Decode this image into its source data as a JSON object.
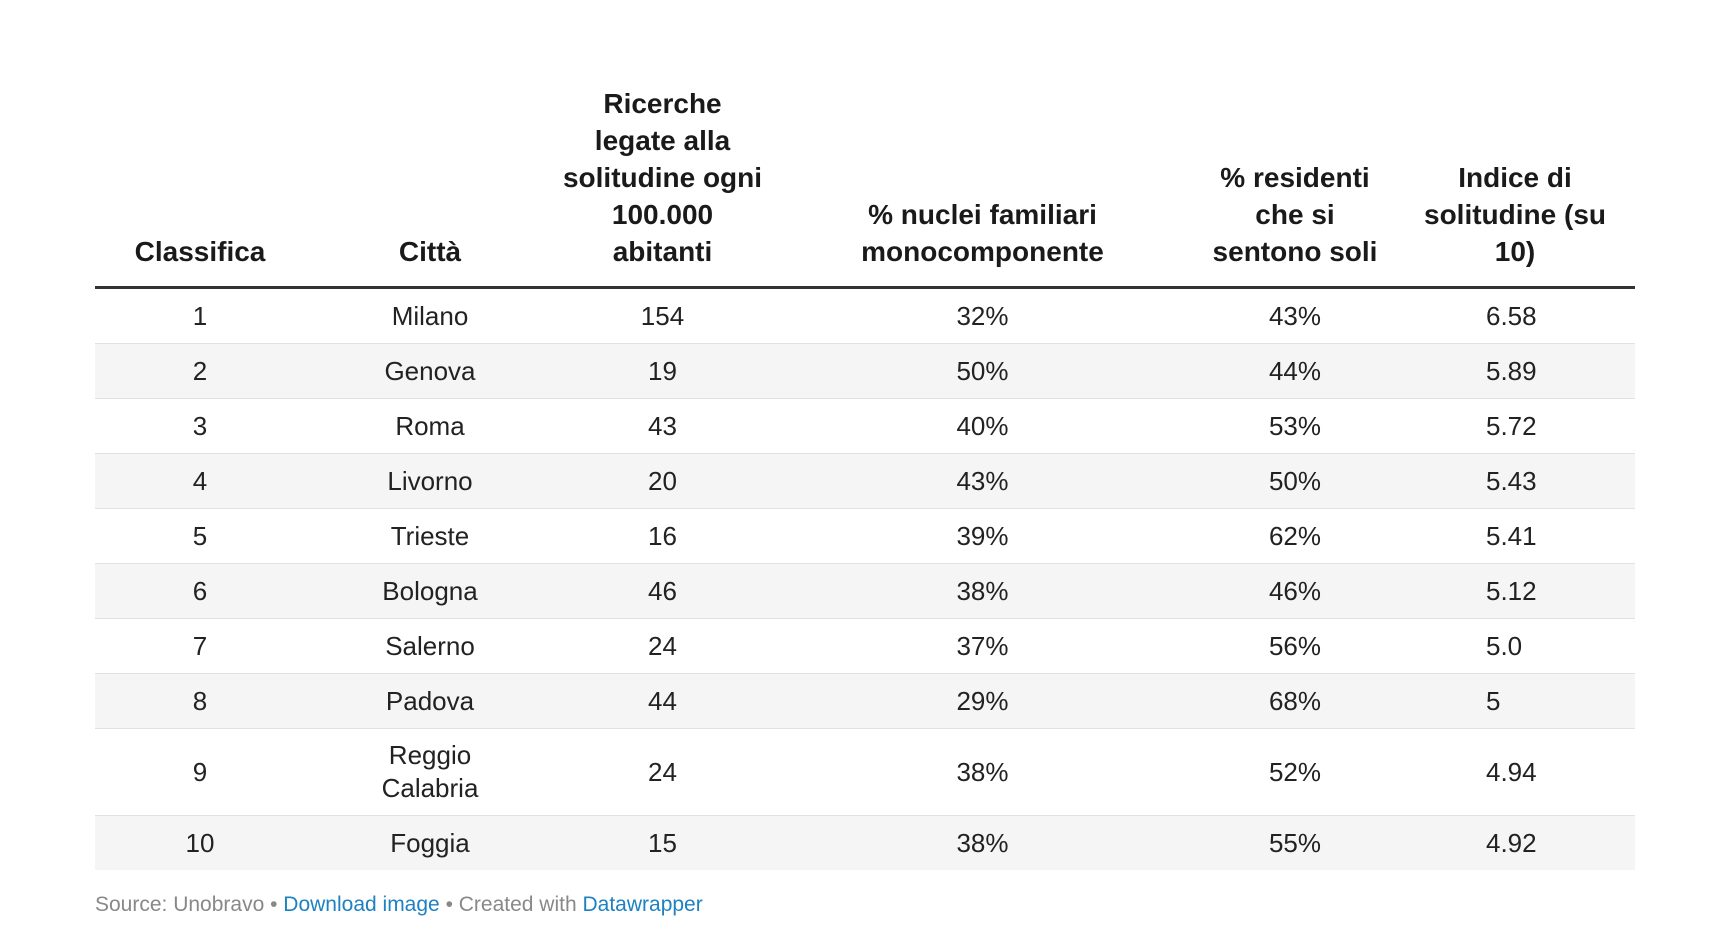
{
  "chart_data": {
    "type": "table",
    "columns": [
      "Classifica",
      "Città",
      "Ricerche legate alla solitudine ogni 100.000 abitanti",
      "% nuclei familiari monocomponente",
      "% residenti che si sentono soli",
      "Indice di solitudine (su 10)"
    ],
    "rows": [
      [
        "1",
        "Milano",
        "154",
        "32%",
        "43%",
        "6.58"
      ],
      [
        "2",
        "Genova",
        "19",
        "50%",
        "44%",
        "5.89"
      ],
      [
        "3",
        "Roma",
        "43",
        "40%",
        "53%",
        "5.72"
      ],
      [
        "4",
        "Livorno",
        "20",
        "43%",
        "50%",
        "5.43"
      ],
      [
        "5",
        "Trieste",
        "16",
        "39%",
        "62%",
        "5.41"
      ],
      [
        "6",
        "Bologna",
        "46",
        "38%",
        "46%",
        "5.12"
      ],
      [
        "7",
        "Salerno",
        "24",
        "37%",
        "56%",
        "5.0"
      ],
      [
        "8",
        "Padova",
        "44",
        "29%",
        "68%",
        "5"
      ],
      [
        "9",
        "Reggio Calabria",
        "24",
        "38%",
        "52%",
        "4.94"
      ],
      [
        "10",
        "Foggia",
        "15",
        "38%",
        "55%",
        "4.92"
      ]
    ]
  },
  "footer": {
    "source": "Source: Unobravo",
    "separator": " • ",
    "download": "Download image",
    "created_with": "Created with",
    "tool": "Datawrapper"
  },
  "colors": {
    "header_rule": "#333333",
    "stripe": "#f5f5f5",
    "link": "#1d81c2",
    "footer_text": "#888888"
  }
}
